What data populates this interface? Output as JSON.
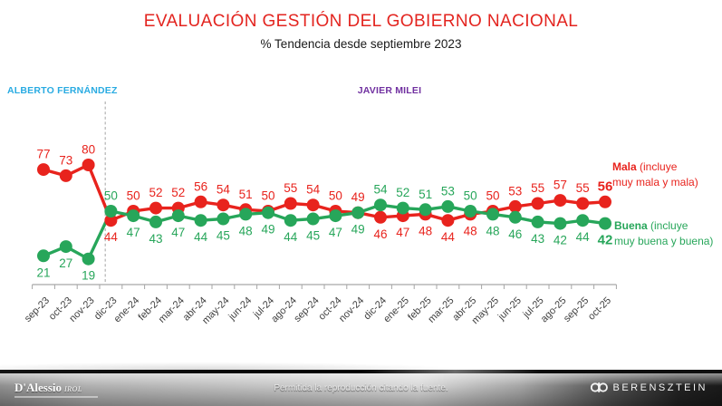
{
  "title": "EVALUACIÓN GESTIÓN DEL GOBIERNO NACIONAL",
  "subtitle": "% Tendencia desde septiembre 2023",
  "periods": {
    "fernandez": {
      "label": "ALBERTO FERNÁNDEZ",
      "color": "#29abe2"
    },
    "milei": {
      "label": "JAVIER MILEI",
      "color": "#7030a0"
    }
  },
  "legend": {
    "mala": {
      "name": "Mala",
      "rest": " (incluye",
      "line2": "muy mala y mala)"
    },
    "buena": {
      "name": "Buena",
      "rest": " (incluye",
      "line2": "muy buena y buena)"
    }
  },
  "chart_data": {
    "type": "line",
    "title": "EVALUACIÓN GESTIÓN DEL GOBIERNO NACIONAL",
    "subtitle": "% Tendencia desde septiembre 2023",
    "categories": [
      "sep-23",
      "oct-23",
      "nov-23",
      "dic-23",
      "ene-24",
      "feb-24",
      "mar-24",
      "abr-24",
      "may-24",
      "jun-24",
      "jul-24",
      "ago-24",
      "sep-24",
      "oct-24",
      "nov-24",
      "dic-24",
      "ene-25",
      "feb-25",
      "mar-25",
      "abr-25",
      "may-25",
      "jun-25",
      "jul-25",
      "ago-25",
      "sep-25",
      "oct-25"
    ],
    "series": [
      {
        "name": "Mala",
        "color": "#e8231d",
        "values": [
          77,
          73,
          80,
          44,
          50,
          52,
          52,
          56,
          54,
          51,
          50,
          55,
          54,
          50,
          49,
          46,
          47,
          48,
          44,
          48,
          50,
          53,
          55,
          57,
          55,
          56
        ]
      },
      {
        "name": "Buena",
        "color": "#27a65a",
        "values": [
          21,
          27,
          19,
          50,
          47,
          43,
          47,
          44,
          45,
          48,
          49,
          44,
          45,
          47,
          49,
          54,
          52,
          51,
          53,
          50,
          48,
          46,
          43,
          42,
          44,
          42
        ]
      }
    ],
    "ylim": [
      0,
      100
    ],
    "grid": false,
    "legend_position": "right",
    "period_change_after": "nov-23",
    "value_labels_shown": true,
    "last_point_labels_bold": true
  },
  "footer": {
    "left_logo": {
      "main": "D'Alessio",
      "sub": "IROL"
    },
    "center_text": "Permitida la reproducción citando la fuente.",
    "right_logo": "BERENSZTEIN"
  }
}
